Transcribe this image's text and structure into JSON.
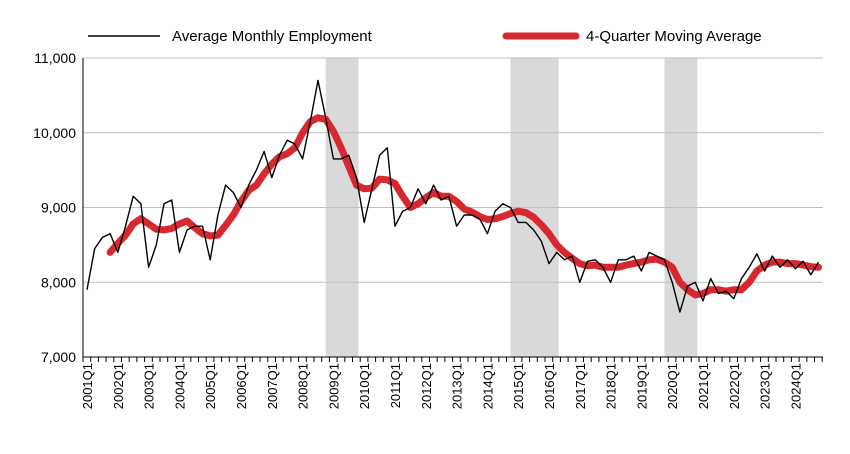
{
  "chart_data": {
    "type": "line",
    "title": "",
    "xlabel": "",
    "ylabel": "",
    "ylim": [
      7000,
      11000
    ],
    "yticks": [
      7000,
      8000,
      9000,
      10000,
      11000
    ],
    "ytick_labels": [
      "7,000",
      "8,000",
      "9,000",
      "10,000",
      "11,000"
    ],
    "grid": "horizontal",
    "legend_position": "top",
    "colors": {
      "employment": "#000000",
      "moving_average": "#d7282f",
      "recession": "#d9d9d9",
      "grid": "#bfbfbf"
    },
    "x_labels": [
      "2001Q1",
      "2002Q1",
      "2003Q1",
      "2004Q1",
      "2005Q1",
      "2006Q1",
      "2007Q1",
      "2008Q1",
      "2009Q1",
      "2010Q1",
      "2011Q1",
      "2012Q1",
      "2013Q1",
      "2014Q1",
      "2015Q1",
      "2016Q1",
      "2017Q1",
      "2018Q1",
      "2019Q1",
      "2020Q1",
      "2021Q1",
      "2022Q1",
      "2023Q1",
      "2024Q1"
    ],
    "recession_bands": [
      {
        "from": "2008Q4",
        "to": "2009Q4"
      },
      {
        "from": "2014Q4",
        "to": "2016Q2"
      },
      {
        "from": "2019Q4",
        "to": "2020Q4"
      }
    ],
    "series": [
      {
        "name": "Average Monthly Employment",
        "x_start": "2001Q1",
        "values": [
          7900,
          8450,
          8600,
          8650,
          8400,
          8750,
          9150,
          9050,
          8200,
          8500,
          9050,
          9100,
          8400,
          8700,
          8750,
          8750,
          8300,
          8900,
          9300,
          9200,
          9000,
          9300,
          9500,
          9750,
          9400,
          9700,
          9900,
          9850,
          9650,
          10150,
          10700,
          10200,
          9650,
          9650,
          9700,
          9400,
          8800,
          9250,
          9700,
          9800,
          8750,
          8950,
          9000,
          9250,
          9050,
          9300,
          9100,
          9150,
          8750,
          8900,
          8900,
          8850,
          8650,
          8950,
          9050,
          9000,
          8800,
          8800,
          8700,
          8550,
          8250,
          8400,
          8300,
          8350,
          8000,
          8280,
          8300,
          8200,
          8000,
          8300,
          8300,
          8350,
          8150,
          8400,
          8350,
          8300,
          8000,
          7600,
          7950,
          8000,
          7750,
          8050,
          7850,
          7880,
          7780,
          8050,
          8200,
          8380,
          8150,
          8350,
          8200,
          8300,
          8180,
          8280,
          8100,
          8270
        ]
      },
      {
        "name": "4-Quarter Moving Average",
        "x_start": "2001Q4",
        "values": [
          8400,
          8520,
          8630,
          8780,
          8850,
          8780,
          8710,
          8700,
          8720,
          8780,
          8820,
          8730,
          8650,
          8620,
          8630,
          8760,
          8900,
          9080,
          9230,
          9300,
          9450,
          9580,
          9680,
          9720,
          9800,
          10000,
          10150,
          10200,
          10180,
          10020,
          9800,
          9550,
          9300,
          9250,
          9260,
          9380,
          9370,
          9320,
          9150,
          9000,
          9050,
          9130,
          9200,
          9150,
          9150,
          9080,
          8980,
          8940,
          8880,
          8840,
          8850,
          8880,
          8920,
          8950,
          8930,
          8870,
          8770,
          8650,
          8500,
          8400,
          8320,
          8250,
          8220,
          8230,
          8200,
          8200,
          8200,
          8230,
          8250,
          8270,
          8300,
          8310,
          8270,
          8200,
          8000,
          7900,
          7830,
          7850,
          7900,
          7900,
          7880,
          7900,
          7900,
          8000,
          8150,
          8230,
          8270,
          8270,
          8250,
          8250,
          8230,
          8210,
          8200
        ]
      }
    ]
  }
}
